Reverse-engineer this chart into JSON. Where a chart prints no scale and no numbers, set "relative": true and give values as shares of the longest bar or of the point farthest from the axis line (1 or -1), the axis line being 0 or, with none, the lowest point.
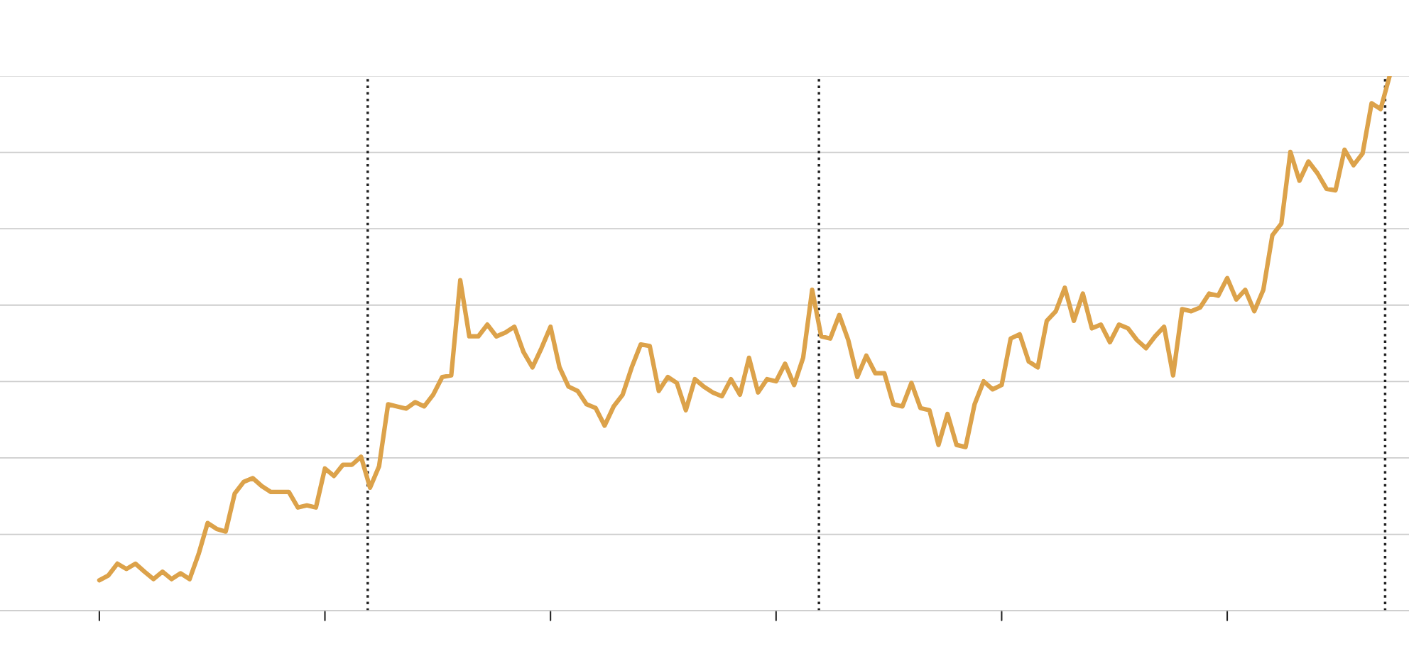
{
  "chart_data": {
    "type": "line",
    "relative": true,
    "grid": "y",
    "line_style": "solid",
    "categories": [
      null,
      null,
      null,
      null,
      null,
      null,
      null,
      null,
      null,
      null,
      null,
      null,
      null,
      null,
      null,
      null,
      null,
      null,
      null,
      null,
      null,
      null,
      null,
      null,
      null,
      null,
      null,
      null,
      null,
      null,
      null,
      null,
      null,
      null,
      null,
      null,
      null,
      null,
      null,
      null,
      null,
      null,
      null,
      null,
      null,
      null,
      null,
      null,
      null,
      null,
      null,
      null,
      null,
      null,
      null,
      null,
      null,
      null,
      null,
      null,
      null,
      null,
      null,
      null,
      null,
      null,
      null,
      null,
      null,
      null,
      null,
      null,
      null,
      null,
      null,
      null,
      null,
      null,
      null,
      null,
      null,
      null,
      null,
      null,
      null,
      null,
      null,
      null,
      null,
      null,
      null,
      null,
      null,
      null,
      null,
      null,
      null,
      null,
      null,
      null,
      null,
      null,
      null,
      null,
      null,
      null,
      null,
      null,
      null,
      null,
      null,
      null,
      null,
      null,
      null,
      null,
      null,
      null,
      null,
      null,
      null,
      null,
      null,
      null,
      null,
      null,
      null,
      null,
      null,
      null,
      null,
      null,
      null,
      null,
      null,
      null,
      null,
      null,
      null,
      null,
      null,
      null,
      null,
      null
    ],
    "series": [
      {
        "color": "#dca24a",
        "values": [
          0.057,
          0.066,
          0.088,
          0.078,
          0.088,
          0.073,
          0.059,
          0.073,
          0.059,
          0.07,
          0.059,
          0.106,
          0.164,
          0.153,
          0.148,
          0.219,
          0.241,
          0.248,
          0.233,
          0.222,
          0.222,
          0.222,
          0.193,
          0.197,
          0.193,
          0.266,
          0.252,
          0.273,
          0.273,
          0.288,
          0.23,
          0.27,
          0.386,
          0.382,
          0.378,
          0.39,
          0.382,
          0.404,
          0.437,
          0.44,
          0.618,
          0.513,
          0.513,
          0.535,
          0.513,
          0.52,
          0.531,
          0.484,
          0.455,
          0.491,
          0.531,
          0.455,
          0.419,
          0.411,
          0.386,
          0.379,
          0.346,
          0.382,
          0.404,
          0.455,
          0.498,
          0.495,
          0.411,
          0.437,
          0.426,
          0.375,
          0.433,
          0.419,
          0.408,
          0.401,
          0.433,
          0.404,
          0.473,
          0.408,
          0.433,
          0.429,
          0.462,
          0.422,
          0.473,
          0.6,
          0.513,
          0.509,
          0.553,
          0.506,
          0.437,
          0.477,
          0.444,
          0.444,
          0.386,
          0.382,
          0.426,
          0.379,
          0.375,
          0.31,
          0.368,
          0.31,
          0.306,
          0.386,
          0.429,
          0.414,
          0.422,
          0.509,
          0.517,
          0.466,
          0.455,
          0.542,
          0.56,
          0.604,
          0.542,
          0.593,
          0.528,
          0.535,
          0.502,
          0.535,
          0.528,
          0.506,
          0.491,
          0.513,
          0.531,
          0.44,
          0.564,
          0.56,
          0.567,
          0.593,
          0.589,
          0.622,
          0.582,
          0.6,
          0.56,
          0.6,
          0.702,
          0.724,
          0.858,
          0.804,
          0.84,
          0.818,
          0.789,
          0.786,
          0.862,
          0.833,
          0.855,
          0.949,
          0.938,
          1.0
        ]
      }
    ]
  }
}
